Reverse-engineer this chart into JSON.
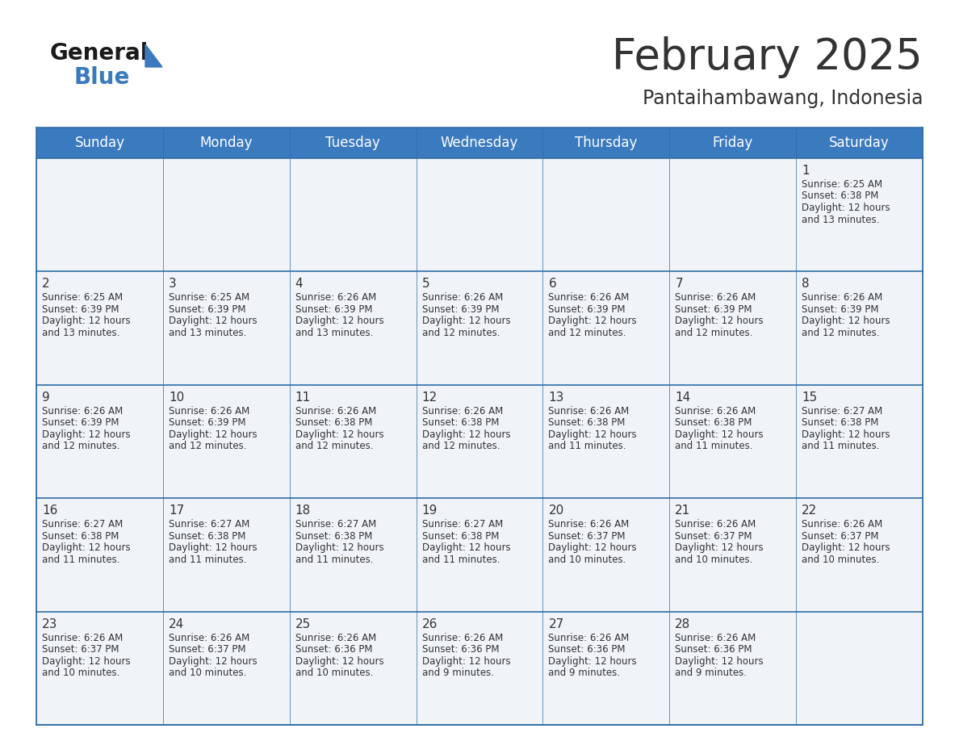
{
  "title": "February 2025",
  "subtitle": "Pantaihambawang, Indonesia",
  "header_bg": "#3a7abf",
  "header_text_color": "#ffffff",
  "cell_bg": "#f0f4f8",
  "border_color": "#2e6da4",
  "text_color": "#333333",
  "day_number_color": "#2e6da4",
  "days_of_week": [
    "Sunday",
    "Monday",
    "Tuesday",
    "Wednesday",
    "Thursday",
    "Friday",
    "Saturday"
  ],
  "calendar": [
    [
      {
        "day": "",
        "sunrise": "",
        "sunset": "",
        "daylight": ""
      },
      {
        "day": "",
        "sunrise": "",
        "sunset": "",
        "daylight": ""
      },
      {
        "day": "",
        "sunrise": "",
        "sunset": "",
        "daylight": ""
      },
      {
        "day": "",
        "sunrise": "",
        "sunset": "",
        "daylight": ""
      },
      {
        "day": "",
        "sunrise": "",
        "sunset": "",
        "daylight": ""
      },
      {
        "day": "",
        "sunrise": "",
        "sunset": "",
        "daylight": ""
      },
      {
        "day": "1",
        "sunrise": "6:25 AM",
        "sunset": "6:38 PM",
        "daylight": "12 hours\nand 13 minutes."
      }
    ],
    [
      {
        "day": "2",
        "sunrise": "6:25 AM",
        "sunset": "6:39 PM",
        "daylight": "12 hours\nand 13 minutes."
      },
      {
        "day": "3",
        "sunrise": "6:25 AM",
        "sunset": "6:39 PM",
        "daylight": "12 hours\nand 13 minutes."
      },
      {
        "day": "4",
        "sunrise": "6:26 AM",
        "sunset": "6:39 PM",
        "daylight": "12 hours\nand 13 minutes."
      },
      {
        "day": "5",
        "sunrise": "6:26 AM",
        "sunset": "6:39 PM",
        "daylight": "12 hours\nand 12 minutes."
      },
      {
        "day": "6",
        "sunrise": "6:26 AM",
        "sunset": "6:39 PM",
        "daylight": "12 hours\nand 12 minutes."
      },
      {
        "day": "7",
        "sunrise": "6:26 AM",
        "sunset": "6:39 PM",
        "daylight": "12 hours\nand 12 minutes."
      },
      {
        "day": "8",
        "sunrise": "6:26 AM",
        "sunset": "6:39 PM",
        "daylight": "12 hours\nand 12 minutes."
      }
    ],
    [
      {
        "day": "9",
        "sunrise": "6:26 AM",
        "sunset": "6:39 PM",
        "daylight": "12 hours\nand 12 minutes."
      },
      {
        "day": "10",
        "sunrise": "6:26 AM",
        "sunset": "6:39 PM",
        "daylight": "12 hours\nand 12 minutes."
      },
      {
        "day": "11",
        "sunrise": "6:26 AM",
        "sunset": "6:38 PM",
        "daylight": "12 hours\nand 12 minutes."
      },
      {
        "day": "12",
        "sunrise": "6:26 AM",
        "sunset": "6:38 PM",
        "daylight": "12 hours\nand 12 minutes."
      },
      {
        "day": "13",
        "sunrise": "6:26 AM",
        "sunset": "6:38 PM",
        "daylight": "12 hours\nand 11 minutes."
      },
      {
        "day": "14",
        "sunrise": "6:26 AM",
        "sunset": "6:38 PM",
        "daylight": "12 hours\nand 11 minutes."
      },
      {
        "day": "15",
        "sunrise": "6:27 AM",
        "sunset": "6:38 PM",
        "daylight": "12 hours\nand 11 minutes."
      }
    ],
    [
      {
        "day": "16",
        "sunrise": "6:27 AM",
        "sunset": "6:38 PM",
        "daylight": "12 hours\nand 11 minutes."
      },
      {
        "day": "17",
        "sunrise": "6:27 AM",
        "sunset": "6:38 PM",
        "daylight": "12 hours\nand 11 minutes."
      },
      {
        "day": "18",
        "sunrise": "6:27 AM",
        "sunset": "6:38 PM",
        "daylight": "12 hours\nand 11 minutes."
      },
      {
        "day": "19",
        "sunrise": "6:27 AM",
        "sunset": "6:38 PM",
        "daylight": "12 hours\nand 11 minutes."
      },
      {
        "day": "20",
        "sunrise": "6:26 AM",
        "sunset": "6:37 PM",
        "daylight": "12 hours\nand 10 minutes."
      },
      {
        "day": "21",
        "sunrise": "6:26 AM",
        "sunset": "6:37 PM",
        "daylight": "12 hours\nand 10 minutes."
      },
      {
        "day": "22",
        "sunrise": "6:26 AM",
        "sunset": "6:37 PM",
        "daylight": "12 hours\nand 10 minutes."
      }
    ],
    [
      {
        "day": "23",
        "sunrise": "6:26 AM",
        "sunset": "6:37 PM",
        "daylight": "12 hours\nand 10 minutes."
      },
      {
        "day": "24",
        "sunrise": "6:26 AM",
        "sunset": "6:37 PM",
        "daylight": "12 hours\nand 10 minutes."
      },
      {
        "day": "25",
        "sunrise": "6:26 AM",
        "sunset": "6:36 PM",
        "daylight": "12 hours\nand 10 minutes."
      },
      {
        "day": "26",
        "sunrise": "6:26 AM",
        "sunset": "6:36 PM",
        "daylight": "12 hours\nand 9 minutes."
      },
      {
        "day": "27",
        "sunrise": "6:26 AM",
        "sunset": "6:36 PM",
        "daylight": "12 hours\nand 9 minutes."
      },
      {
        "day": "28",
        "sunrise": "6:26 AM",
        "sunset": "6:36 PM",
        "daylight": "12 hours\nand 9 minutes."
      },
      {
        "day": "",
        "sunrise": "",
        "sunset": "",
        "daylight": ""
      }
    ]
  ],
  "logo_general_color": "#1a1a1a",
  "logo_blue_color": "#3a7abf",
  "logo_triangle_color": "#3a7abf"
}
